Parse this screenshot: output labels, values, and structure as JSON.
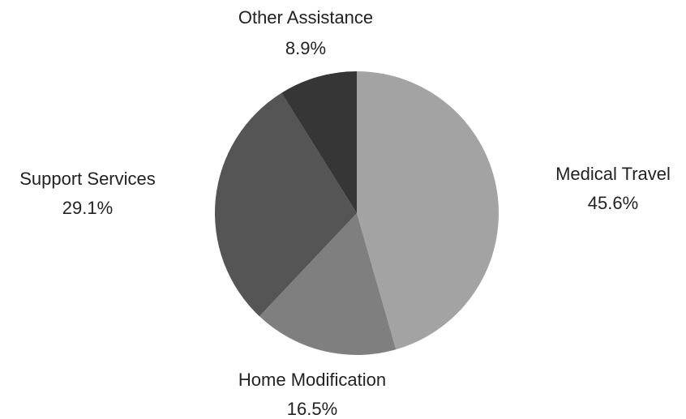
{
  "chart_data": {
    "type": "pie",
    "title": "",
    "legend": "none",
    "series": [
      {
        "values": [
          45.6,
          16.5,
          29.1,
          8.9
        ],
        "labels": [
          "Medical Travel",
          "Home Modification",
          "Support Services",
          "Other Assistance"
        ],
        "value_labels": [
          "45.6%",
          "16.5%",
          "29.1%",
          "8.9%"
        ],
        "colors": [
          "#a3a3a3",
          "#7f7f7f",
          "#555555",
          "#363636"
        ]
      }
    ],
    "start_angle": "12 o'clock",
    "direction": "clockwise"
  }
}
